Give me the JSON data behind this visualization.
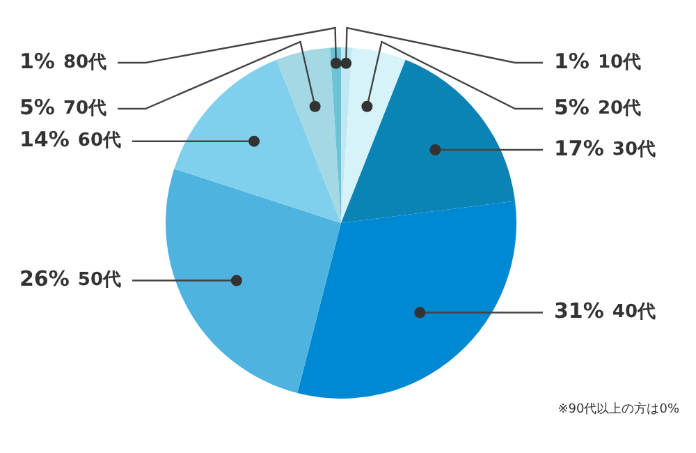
{
  "chart_data": {
    "type": "pie",
    "categories": [
      "10代",
      "20代",
      "30代",
      "40代",
      "50代",
      "60代",
      "70代",
      "80代"
    ],
    "values": [
      1,
      5,
      17,
      31,
      26,
      14,
      5,
      1
    ],
    "colors": [
      "#bfe7f4",
      "#d6f3f9",
      "#0b83b4",
      "#0089d3",
      "#4eb3de",
      "#80d0ed",
      "#a4d8e4",
      "#6dc3d6"
    ],
    "value_labels": [
      "1%",
      "5%",
      "17%",
      "31%",
      "26%",
      "14%",
      "5%",
      "1%"
    ],
    "legend": false,
    "annotations": [
      "※90代以上の方は0%"
    ]
  }
}
